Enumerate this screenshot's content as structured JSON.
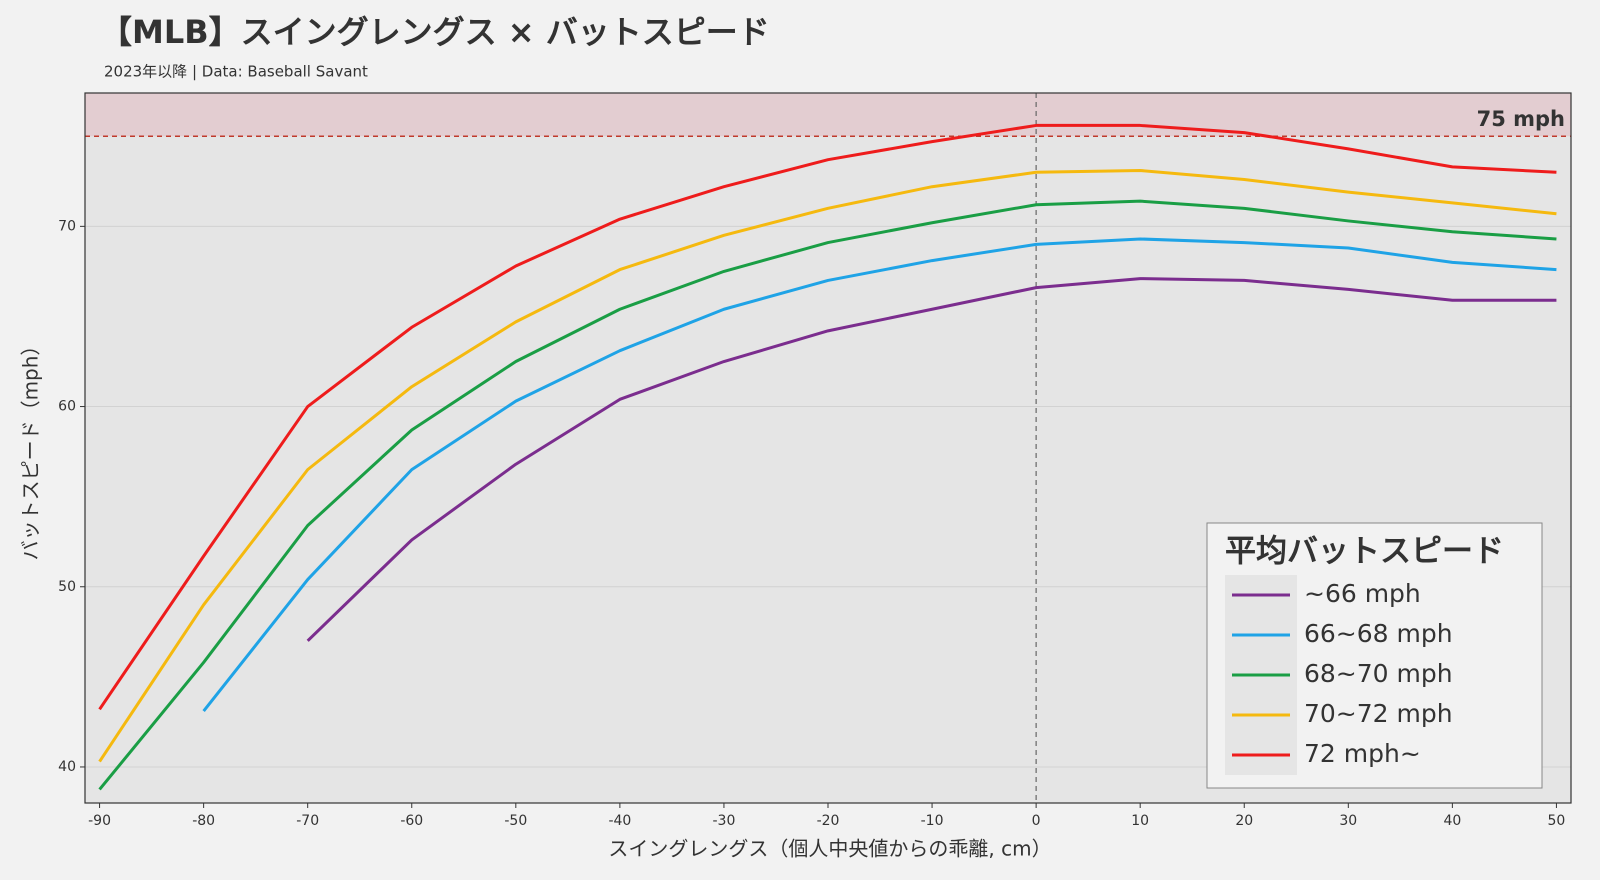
{
  "chart_data": {
    "type": "line",
    "title": "【MLB】スイングレングス × バットスピード",
    "subtitle": "2023年以降 | Data: Baseball Savant",
    "x_label": "スイングレングス（個人中央値からの乖離, cm）",
    "y_label": "バットスピード（mph）",
    "x": [
      -90,
      -80,
      -70,
      -60,
      -50,
      -40,
      -30,
      -20,
      -10,
      0,
      10,
      20,
      30,
      40,
      50
    ],
    "series": [
      {
        "name": "~66 mph",
        "color": "#7b2d8e",
        "values": [
          null,
          null,
          47.0,
          52.6,
          56.8,
          60.4,
          62.5,
          64.2,
          65.4,
          66.6,
          67.1,
          67.0,
          66.5,
          65.9,
          65.9
        ]
      },
      {
        "name": "66~68 mph",
        "color": "#1fa3e6",
        "values": [
          null,
          43.1,
          50.4,
          56.5,
          60.3,
          63.1,
          65.4,
          67.0,
          68.1,
          69.0,
          69.3,
          69.1,
          68.8,
          68.0,
          67.6
        ]
      },
      {
        "name": "68~70 mph",
        "color": "#1a9e45",
        "values": [
          38.75,
          45.8,
          53.4,
          58.7,
          62.5,
          65.4,
          67.5,
          69.1,
          70.2,
          71.2,
          71.4,
          71.0,
          70.3,
          69.7,
          69.3
        ]
      },
      {
        "name": "70~72 mph",
        "color": "#f5b90f",
        "values": [
          40.3,
          49.0,
          56.5,
          61.1,
          64.7,
          67.6,
          69.5,
          71.0,
          72.2,
          73.0,
          73.1,
          72.6,
          71.9,
          71.3,
          70.7
        ]
      },
      {
        "name": "72 mph~",
        "color": "#ee1c1c",
        "values": [
          43.2,
          51.7,
          60.0,
          64.4,
          67.8,
          70.4,
          72.2,
          73.7,
          74.7,
          75.6,
          75.6,
          75.2,
          74.3,
          73.3,
          73.0
        ]
      }
    ],
    "legend_title": "平均バットスピード",
    "legend_position": "lower right",
    "reference_line": {
      "value": 75,
      "label": "75 mph",
      "color": "#c0392b"
    },
    "vline": 0,
    "xlim": [
      -91.4,
      51.4
    ],
    "ylim": [
      38,
      77.4
    ],
    "xticks": [
      -90,
      -80,
      -70,
      -60,
      -50,
      -40,
      -30,
      -20,
      -10,
      0,
      10,
      20,
      30,
      40,
      50
    ],
    "yticks": [
      40,
      50,
      60,
      70
    ],
    "grid": true
  }
}
